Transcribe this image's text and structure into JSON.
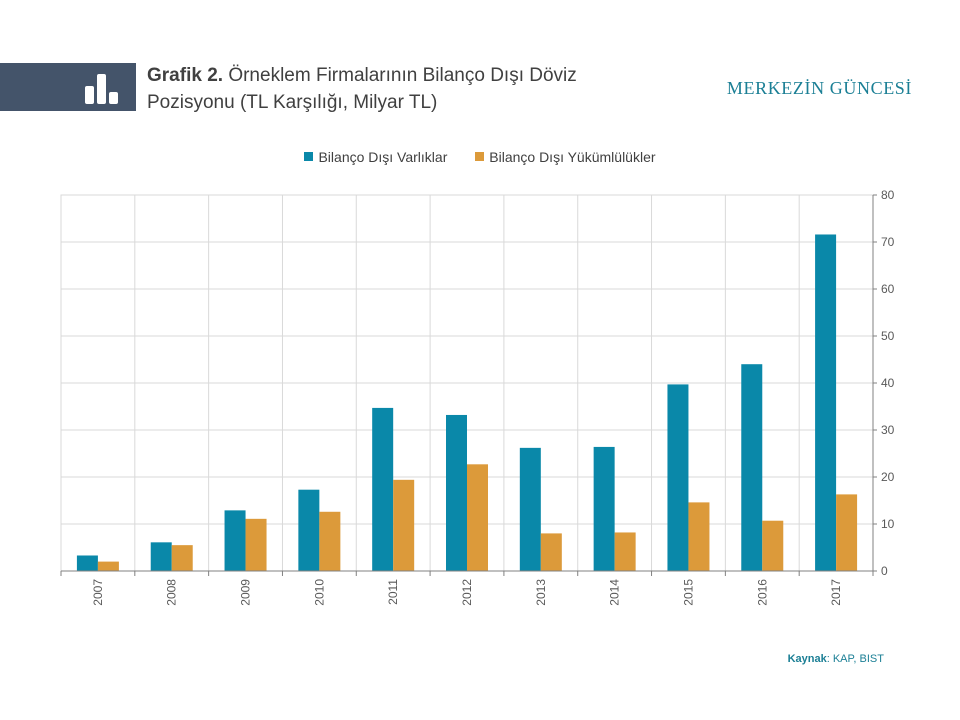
{
  "header": {
    "title_prefix": "Grafik 2.",
    "title_line1": " Örneklem Firmalarının  Bilanço Dışı Döviz",
    "title_line2": "Pozisyonu (TL Karşılığı,  Milyar TL)",
    "brand": "MERKEZİN GÜNCESİ",
    "icon": "bar-chart-icon"
  },
  "colors": {
    "header_band": "#44546a",
    "series_assets": "#0a88a9",
    "series_liabilities": "#dc9a3a",
    "brand": "#1b7f95"
  },
  "chart_data": {
    "type": "bar",
    "title": "Grafik 2. Örneklem Firmalarının  Bilanço Dışı Döviz Pozisyonu (TL Karşılığı,  Milyar TL)",
    "categories": [
      "2007",
      "2008",
      "2009",
      "2010",
      "2011",
      "2012",
      "2013",
      "2014",
      "2015",
      "2016",
      "2017"
    ],
    "series": [
      {
        "name": "Bilanço Dışı Varlıklar",
        "values": [
          3.3,
          6.1,
          12.9,
          17.3,
          34.7,
          33.2,
          26.2,
          26.4,
          39.7,
          44.0,
          71.6
        ]
      },
      {
        "name": "Bilanço Dışı Yükümlülükler",
        "values": [
          2.0,
          5.5,
          11.1,
          12.6,
          19.4,
          22.7,
          8.0,
          8.2,
          14.6,
          10.7,
          16.3
        ]
      }
    ],
    "ylim": [
      0,
      80
    ],
    "yticks": [
      0,
      10,
      20,
      30,
      40,
      50,
      60,
      70,
      80
    ],
    "y_axis_side": "right",
    "grid": true,
    "legend_position": "top-center"
  },
  "source": {
    "label": "Kaynak",
    "text": ": KAP, BIST"
  }
}
